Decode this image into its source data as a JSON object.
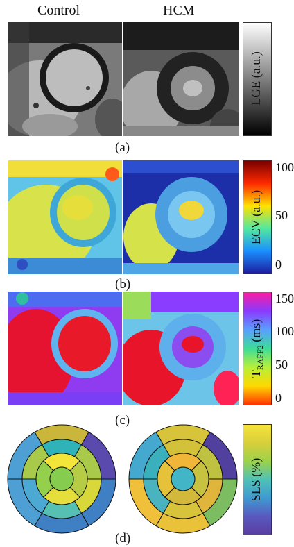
{
  "columns": [
    "Control",
    "HCM"
  ],
  "rows": [
    {
      "id": "a",
      "label": "(a)",
      "colorbar_title": "LGE (a.u.)",
      "colormap": "grayscale",
      "ticks": []
    },
    {
      "id": "b",
      "label": "(b)",
      "colorbar_title": "ECV (a.u.)",
      "colormap": "jet",
      "ticks": [
        "100",
        "50",
        "0"
      ]
    },
    {
      "id": "c",
      "label": "(c)",
      "colorbar_title_main": "T",
      "colorbar_title_sub": "RAFF2",
      "colorbar_title_unit": " (ms)",
      "colormap": "hsv-reversed",
      "ticks": [
        "150",
        "100",
        "50",
        "0"
      ]
    },
    {
      "id": "d",
      "label": "(d)",
      "colorbar_title": "SLS (%)",
      "colormap": "viridis-like"
    }
  ],
  "colors": {
    "jet": [
      "#7a0000",
      "#ff2a00",
      "#ffe100",
      "#52e8a0",
      "#1a8fff",
      "#1d1d9e"
    ],
    "raff": [
      "#ff1aa0",
      "#8a3aff",
      "#5aa0ff",
      "#3ddc9a",
      "#b6f03a",
      "#ffd900",
      "#ff3300"
    ],
    "sls": [
      "#f7e33a",
      "#d7cf3b",
      "#9bd24a",
      "#4fc1b6",
      "#3f9ad1",
      "#5959c0",
      "#5a3ea1"
    ]
  },
  "bullseye_control": {
    "outer": [
      "#c9b63a",
      "#5b4aae",
      "#3f7fc3",
      "#3f7fc3",
      "#4e9fd3",
      "#4e9fd3"
    ],
    "mid": [
      "#2fb2b8",
      "#a8c94a",
      "#d8d83b",
      "#56c0b3",
      "#4ba9d4",
      "#a8c94a"
    ],
    "inner": [
      "#f3e53a",
      "#b6cc45",
      "#e6de3a",
      "#95d04c"
    ],
    "apex": "#86cc4f"
  },
  "bullseye_hcm": {
    "outer": [
      "#d8c43b",
      "#52409f",
      "#7cbd62",
      "#e9c23a",
      "#f0c03a",
      "#45a9cf"
    ],
    "mid": [
      "#d4c13a",
      "#bfc140",
      "#dfb53c",
      "#d8c43b",
      "#49b3c0",
      "#3ab0bd"
    ],
    "inner": [
      "#f0b63a",
      "#c7c340",
      "#d3b93b",
      "#e6c13a"
    ],
    "apex": "#42b6c7"
  }
}
